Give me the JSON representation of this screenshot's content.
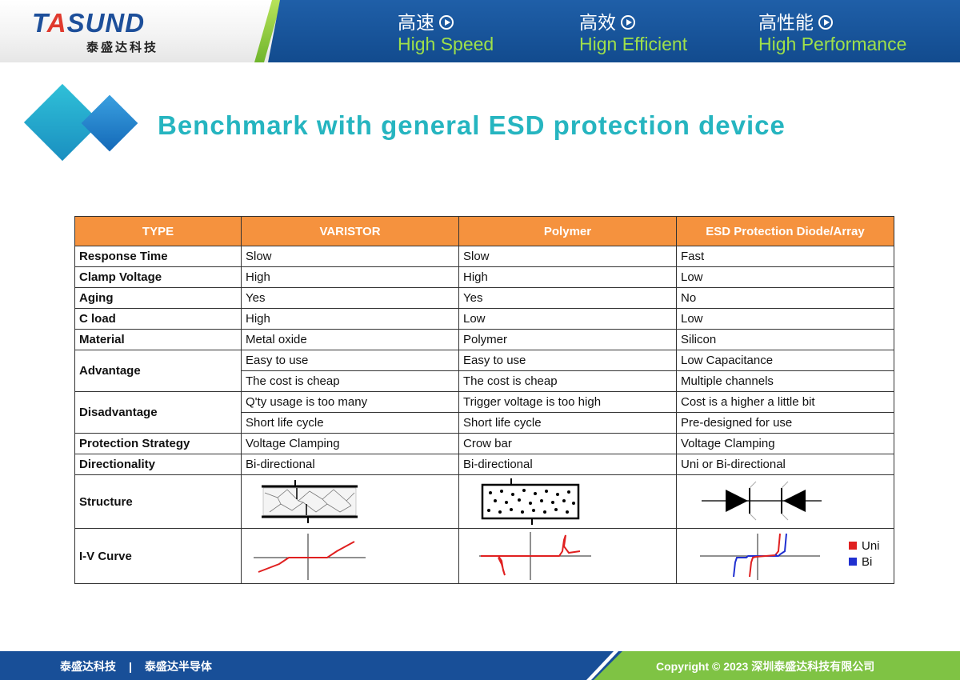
{
  "header": {
    "logo_text": "TASUND",
    "logo_sub": "泰盛达科技",
    "slogans": [
      {
        "cn": "高速",
        "en": "High Speed"
      },
      {
        "cn": "高效",
        "en": "Hign Efficient"
      },
      {
        "cn": "高性能",
        "en": "High Performance"
      }
    ]
  },
  "title": "Benchmark with general ESD protection device",
  "table": {
    "headers": [
      "TYPE",
      "VARISTOR",
      "Polymer",
      "ESD Protection Diode/Array"
    ],
    "rows": {
      "response_time": [
        "Response Time",
        "Slow",
        "Slow",
        "Fast"
      ],
      "clamp_voltage": [
        "Clamp Voltage",
        "High",
        "High",
        "Low"
      ],
      "aging": [
        "Aging",
        "Yes",
        "Yes",
        "No"
      ],
      "c_load": [
        "C load",
        "High",
        "Low",
        "Low"
      ],
      "material": [
        "Material",
        "Metal oxide",
        "Polymer",
        "Silicon"
      ],
      "advantage": {
        "label": "Advantage",
        "line1": [
          "Easy to use",
          "Easy to use",
          "Low Capacitance"
        ],
        "line2": [
          "The cost is cheap",
          "The cost is cheap",
          "Multiple channels"
        ]
      },
      "disadvantage": {
        "label": "Disadvantage",
        "line1": [
          "Q'ty usage is too many",
          "Trigger voltage is too high",
          "Cost is a higher a little bit"
        ],
        "line2": [
          "Short life cycle",
          "Short life cycle",
          "Pre-designed for use"
        ]
      },
      "protection_strategy": [
        "Protection Strategy",
        "Voltage Clamping",
        "Crow bar",
        "Voltage Clamping"
      ],
      "directionality": [
        "Directionality",
        "Bi-directional",
        "Bi-directional",
        "Uni or Bi-directional"
      ],
      "structure": {
        "label": "Structure"
      },
      "iv_curve": {
        "label": "I-V Curve"
      }
    },
    "legend": [
      {
        "label": "Uni",
        "color": "#e02020"
      },
      {
        "label": "Bi",
        "color": "#2030d0"
      }
    ]
  },
  "footer": {
    "left_1": "泰盛达科技",
    "separator": "|",
    "left_2": "泰盛达半导体",
    "right": "Copyright © 2023 深圳泰盛达科技有限公司"
  }
}
